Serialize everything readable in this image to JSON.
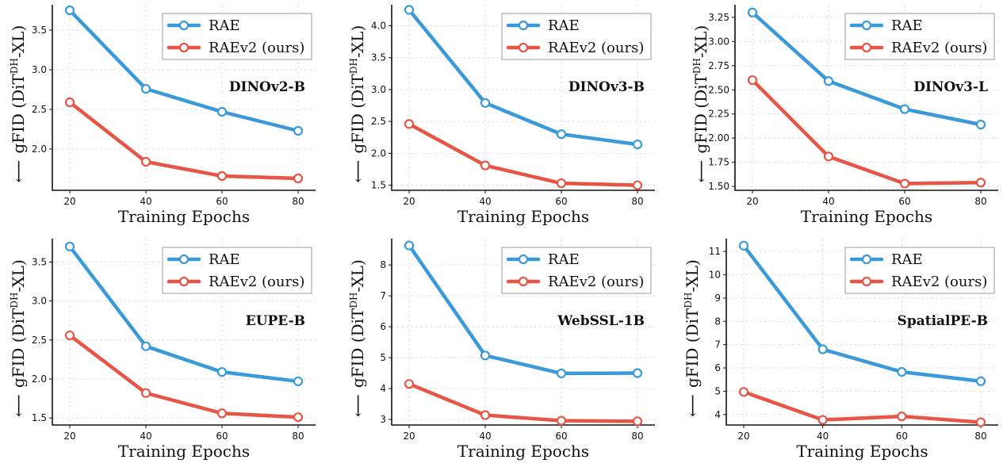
{
  "colors": {
    "rae": "#3a9ad9",
    "raev2": "#e65545",
    "grid": "#d8d8d8",
    "axis": "#111111",
    "legend_border": "#9a9a9a"
  },
  "chart_data": [
    {
      "type": "line",
      "panel_label": "DINOv2-B",
      "xlabel": "Training Epochs",
      "ylabel": "gFID (DiT",
      "ylabel_sup": "DH",
      "ylabel_suffix": "-XL)",
      "arrow": "⟵",
      "x": [
        20,
        40,
        60,
        80
      ],
      "xticks": [
        "20",
        "40",
        "60",
        "80"
      ],
      "ylim": [
        1.48,
        3.82
      ],
      "yticks": [
        2.0,
        2.5,
        3.0,
        3.5
      ],
      "ytick_labels": [
        "2.0",
        "2.5",
        "3.0",
        "3.5"
      ],
      "grid": true,
      "legend": "top-right",
      "series": [
        {
          "name": "RAE",
          "values": [
            3.75,
            2.76,
            2.47,
            2.23
          ]
        },
        {
          "name": "RAEv2 (ours)",
          "values": [
            2.59,
            1.84,
            1.66,
            1.63
          ]
        }
      ]
    },
    {
      "type": "line",
      "panel_label": "DINOv3-B",
      "xlabel": "Training Epochs",
      "ylabel": "gFID (DiT",
      "ylabel_sup": "DH",
      "ylabel_suffix": "-XL)",
      "arrow": "⟵",
      "x": [
        20,
        40,
        60,
        80
      ],
      "xticks": [
        "20",
        "40",
        "60",
        "80"
      ],
      "ylim": [
        1.42,
        4.33
      ],
      "yticks": [
        1.5,
        2.0,
        2.5,
        3.0,
        3.5,
        4.0
      ],
      "ytick_labels": [
        "1.5",
        "2.0",
        "2.5",
        "3.0",
        "3.5",
        "4.0"
      ],
      "grid": true,
      "legend": "top-right",
      "series": [
        {
          "name": "RAE",
          "values": [
            4.25,
            2.79,
            2.3,
            2.14
          ]
        },
        {
          "name": "RAEv2 (ours)",
          "values": [
            2.46,
            1.81,
            1.53,
            1.5
          ]
        }
      ]
    },
    {
      "type": "line",
      "panel_label": "DINOv3-L",
      "xlabel": "Training Epochs",
      "ylabel": "gFID (DiT",
      "ylabel_sup": "DH",
      "ylabel_suffix": "-XL)",
      "arrow": "⟵",
      "x": [
        20,
        40,
        60,
        80
      ],
      "xticks": [
        "20",
        "40",
        "60",
        "80"
      ],
      "ylim": [
        1.46,
        3.38
      ],
      "yticks": [
        1.5,
        1.75,
        2.0,
        2.25,
        2.5,
        2.75,
        3.0,
        3.25
      ],
      "ytick_labels": [
        "1.50",
        "1.75",
        "2.00",
        "2.25",
        "2.50",
        "2.75",
        "3.00",
        "3.25"
      ],
      "grid": true,
      "legend": "top-right",
      "series": [
        {
          "name": "RAE",
          "values": [
            3.3,
            2.59,
            2.3,
            2.14
          ]
        },
        {
          "name": "RAEv2 (ours)",
          "values": [
            2.6,
            1.81,
            1.53,
            1.54
          ]
        }
      ]
    },
    {
      "type": "line",
      "panel_label": "EUPE-B",
      "xlabel": "Training Epochs",
      "ylabel": "gFID (DiT",
      "ylabel_sup": "DH",
      "ylabel_suffix": "-XL)",
      "arrow": "⟵",
      "x": [
        20,
        40,
        60,
        80
      ],
      "xticks": [
        "20",
        "40",
        "60",
        "80"
      ],
      "ylim": [
        1.41,
        3.8
      ],
      "yticks": [
        1.5,
        2.0,
        2.5,
        3.0,
        3.5
      ],
      "ytick_labels": [
        "1.5",
        "2.0",
        "2.5",
        "3.0",
        "3.5"
      ],
      "grid": true,
      "legend": "top-right",
      "series": [
        {
          "name": "RAE",
          "values": [
            3.7,
            2.42,
            2.09,
            1.97
          ]
        },
        {
          "name": "RAEv2 (ours)",
          "values": [
            2.56,
            1.82,
            1.56,
            1.51
          ]
        }
      ]
    },
    {
      "type": "line",
      "panel_label": "WebSSL-1B",
      "xlabel": "Training Epochs",
      "ylabel": "gFID (DiT",
      "ylabel_sup": "DH",
      "ylabel_suffix": "-XL)",
      "arrow": "⟵",
      "x": [
        20,
        40,
        60,
        80
      ],
      "xticks": [
        "20",
        "40",
        "60",
        "80"
      ],
      "ylim": [
        2.82,
        8.85
      ],
      "yticks": [
        3,
        4,
        5,
        6,
        7,
        8
      ],
      "ytick_labels": [
        "3",
        "4",
        "5",
        "6",
        "7",
        "8"
      ],
      "grid": true,
      "legend": "top-right",
      "series": [
        {
          "name": "RAE",
          "values": [
            8.63,
            5.07,
            4.49,
            4.5
          ]
        },
        {
          "name": "RAEv2 (ours)",
          "values": [
            4.15,
            3.14,
            2.96,
            2.94
          ]
        }
      ]
    },
    {
      "type": "line",
      "panel_label": "SpatialPE-B",
      "xlabel": "Training Epochs",
      "ylabel": "gFID (DiT",
      "ylabel_sup": "DH",
      "ylabel_suffix": "-XL)",
      "arrow": "⟵",
      "x": [
        20,
        40,
        60,
        80
      ],
      "xticks": [
        "20",
        "40",
        "60",
        "80"
      ],
      "ylim": [
        3.55,
        11.55
      ],
      "yticks": [
        4,
        5,
        6,
        7,
        8,
        9,
        10,
        11
      ],
      "ytick_labels": [
        "4",
        "5",
        "6",
        "7",
        "8",
        "9",
        "10",
        "11"
      ],
      "grid": true,
      "legend": "top-right",
      "series": [
        {
          "name": "RAE",
          "values": [
            11.25,
            6.8,
            5.83,
            5.43
          ]
        },
        {
          "name": "RAEv2 (ours)",
          "values": [
            4.97,
            3.77,
            3.92,
            3.67
          ]
        }
      ]
    }
  ]
}
